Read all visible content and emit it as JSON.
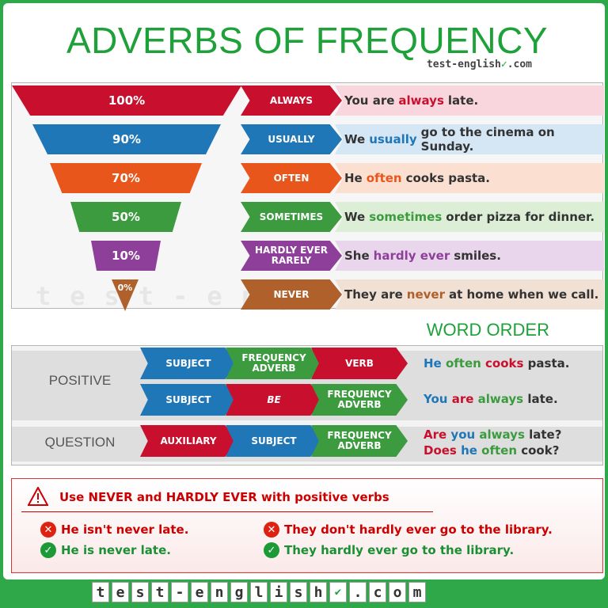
{
  "title": "ADVERBS OF FREQUENCY",
  "brand": {
    "text": "test-english",
    "suffix": ".com",
    "check_icon": "check-icon"
  },
  "colors": {
    "red": "#c8102e",
    "blue": "#1f77b8",
    "orange": "#e8561c",
    "green": "#3c9b3e",
    "purple": "#8e3f9a",
    "brown": "#b0602a",
    "accent": "#1fa13a"
  },
  "frequency": [
    {
      "percent": "100%",
      "adverb": "ALWAYS",
      "pre": "You are",
      "hl": "always",
      "post": "late.",
      "bg": "#f9d6de",
      "col": "#c8102e"
    },
    {
      "percent": "90%",
      "adverb": "USUALLY",
      "pre": "We",
      "hl": "usually",
      "post": "go to the cinema on Sunday.",
      "bg": "#d5e6f4",
      "col": "#1f77b8"
    },
    {
      "percent": "70%",
      "adverb": "OFTEN",
      "pre": "He",
      "hl": "often",
      "post": "cooks pasta.",
      "bg": "#fbe0d2",
      "col": "#e8561c"
    },
    {
      "percent": "50%",
      "adverb": "SOMETIMES",
      "pre": "We",
      "hl": "sometimes",
      "post": "order pizza for dinner.",
      "bg": "#dcefd6",
      "col": "#3c9b3e"
    },
    {
      "percent": "10%",
      "adverb": "HARDLY EVER\nRARELY",
      "pre": "She",
      "hl": "hardly ever",
      "post": "smiles.",
      "bg": "#ead6ec",
      "col": "#8e3f9a"
    },
    {
      "percent": "0%",
      "adverb": "NEVER",
      "pre": "They are",
      "hl": "never",
      "post": "at home when we call.",
      "bg": "#f1e0d4",
      "col": "#b0602a"
    }
  ],
  "watermark": "test-english.com",
  "word_order": {
    "title": "WORD ORDER",
    "positive_label": "POSITIVE",
    "question_label": "QUESTION",
    "rows": [
      {
        "chevrons": [
          [
            "SUBJECT",
            "#1f77b8"
          ],
          [
            "FREQUENCY ADVERB",
            "#3c9b3e"
          ],
          [
            "VERB",
            "#c8102e"
          ]
        ]
      },
      {
        "chevrons": [
          [
            "SUBJECT",
            "#1f77b8"
          ],
          [
            "BE",
            "#c8102e"
          ],
          [
            "FREQUENCY ADVERB",
            "#3c9b3e"
          ]
        ]
      },
      {
        "chevrons": [
          [
            "AUXILIARY",
            "#c8102e"
          ],
          [
            "SUBJECT",
            "#1f77b8"
          ],
          [
            "FREQUENCY ADVERB",
            "#3c9b3e"
          ]
        ]
      }
    ],
    "ex1": [
      [
        "He",
        "#1f77b8"
      ],
      [
        "often",
        "#3c9b3e"
      ],
      [
        "cooks",
        "#c8102e"
      ],
      [
        "pasta.",
        "#333333"
      ]
    ],
    "ex2": [
      [
        "You",
        "#1f77b8"
      ],
      [
        "are",
        "#c8102e"
      ],
      [
        "always",
        "#3c9b3e"
      ],
      [
        "late.",
        "#333333"
      ]
    ],
    "ex3a": [
      [
        "Are",
        "#c8102e"
      ],
      [
        "you",
        "#1f77b8"
      ],
      [
        "always",
        "#3c9b3e"
      ],
      [
        "late?",
        "#333333"
      ]
    ],
    "ex3b": [
      [
        "Does",
        "#c8102e"
      ],
      [
        "he",
        "#1f77b8"
      ],
      [
        "often",
        "#3c9b3e"
      ],
      [
        "cook?",
        "#333333"
      ]
    ]
  },
  "warning": {
    "title": "Use NEVER and HARDLY EVER with positive verbs",
    "bad1": "He isn't never late.",
    "good1": "He is never late.",
    "bad2": "They don't hardly ever go to the library.",
    "good2": "They hardly ever go to the library."
  },
  "footer": [
    "t",
    "e",
    "s",
    "t",
    "-",
    "e",
    "n",
    "g",
    "l",
    "i",
    "s",
    "h",
    "✔",
    ".",
    "c",
    "o",
    "m"
  ]
}
